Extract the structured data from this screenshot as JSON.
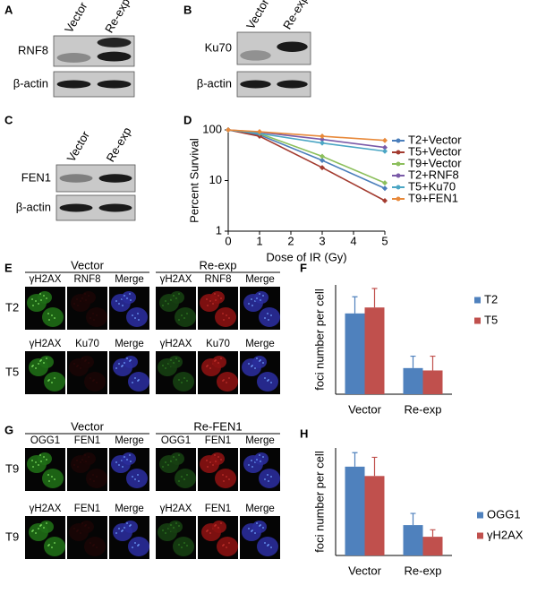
{
  "panels": {
    "A": {
      "label": "A",
      "columns": [
        "Vector",
        "Re-exp"
      ],
      "rows": [
        "RNF8",
        "β-actin"
      ]
    },
    "B": {
      "label": "B",
      "columns": [
        "Vector",
        "Re-exp"
      ],
      "rows": [
        "Ku70",
        "β-actin"
      ]
    },
    "C": {
      "label": "C",
      "columns": [
        "Vector",
        "Re-exp"
      ],
      "rows": [
        "FEN1",
        "β-actin"
      ]
    },
    "E": {
      "label": "E",
      "groups": [
        "Vector",
        "Re-exp"
      ],
      "rows": [
        {
          "name": "T2",
          "channels": [
            "γH2AX",
            "RNF8",
            "Merge",
            "γH2AX",
            "RNF8",
            "Merge"
          ]
        },
        {
          "name": "T5",
          "channels": [
            "γH2AX",
            "Ku70",
            "Merge",
            "γH2AX",
            "Ku70",
            "Merge"
          ]
        }
      ]
    },
    "G": {
      "label": "G",
      "groups": [
        "Vector",
        "Re-FEN1"
      ],
      "rows": [
        {
          "name": "T9",
          "channels": [
            "OGG1",
            "FEN1",
            "Merge",
            "OGG1",
            "FEN1",
            "Merge"
          ]
        },
        {
          "name": "T9",
          "channels": [
            "γH2AX",
            "FEN1",
            "Merge",
            "γH2AX",
            "FEN1",
            "Merge"
          ]
        }
      ]
    }
  },
  "chart_data": [
    {
      "type": "line",
      "panel_label": "D",
      "x_label": "Dose of IR (Gy)",
      "y_label": "Percent Survival",
      "x": [
        0,
        1,
        3,
        5
      ],
      "xlim": [
        0,
        5
      ],
      "xticks": [
        0,
        1,
        2,
        3,
        4,
        5
      ],
      "yscale": "log",
      "ylim": [
        1,
        100
      ],
      "yticks": [
        1,
        10,
        100
      ],
      "series": [
        {
          "name": "T2+Vector",
          "color": "#4a7ebb",
          "values": [
            100,
            80,
            25,
            7
          ]
        },
        {
          "name": "T5+Vector",
          "color": "#a33b2f",
          "values": [
            100,
            75,
            18,
            4
          ]
        },
        {
          "name": "T9+Vector",
          "color": "#8cbf5c",
          "values": [
            100,
            85,
            30,
            9
          ]
        },
        {
          "name": "T2+RNF8",
          "color": "#7a5aa8",
          "values": [
            100,
            90,
            65,
            45
          ]
        },
        {
          "name": "T5+Ku70",
          "color": "#4ba6c4",
          "values": [
            100,
            85,
            55,
            38
          ]
        },
        {
          "name": "T9+FEN1",
          "color": "#e8893a",
          "values": [
            100,
            92,
            75,
            62
          ]
        }
      ]
    },
    {
      "type": "bar",
      "panel_label": "F",
      "y_label": "foci number per cell",
      "categories": [
        "Vector",
        "Re-exp"
      ],
      "ylim": [
        0,
        46
      ],
      "series": [
        {
          "name": "T2",
          "color": "#4f81bd",
          "values": [
            34,
            11
          ],
          "errors": [
            7,
            5
          ]
        },
        {
          "name": "T5",
          "color": "#c0504d",
          "values": [
            36.5,
            10
          ],
          "errors": [
            8,
            6
          ]
        }
      ]
    },
    {
      "type": "bar",
      "panel_label": "H",
      "y_label": "foci number per cell",
      "categories": [
        "Vector",
        "Re-exp"
      ],
      "ylim": [
        0,
        46
      ],
      "series": [
        {
          "name": "OGG1",
          "color": "#4f81bd",
          "values": [
            38,
            13
          ],
          "errors": [
            6,
            5
          ]
        },
        {
          "name": "γH2AX",
          "color": "#c0504d",
          "values": [
            34,
            8
          ],
          "errors": [
            8,
            3
          ]
        }
      ]
    }
  ]
}
